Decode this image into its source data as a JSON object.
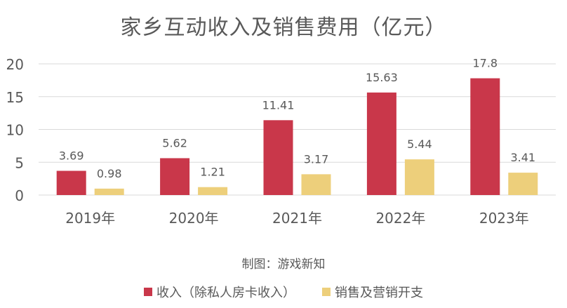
{
  "chart_data": {
    "type": "bar",
    "title": "家乡互动收入及销售费用（亿元）",
    "categories": [
      "2019年",
      "2020年",
      "2021年",
      "2022年",
      "2023年"
    ],
    "series": [
      {
        "name": "收入（除私人房卡收入）",
        "color": "#C9374A",
        "values": [
          3.69,
          5.62,
          11.41,
          15.63,
          17.8
        ],
        "labels": [
          "3.69",
          "5.62",
          "11.41",
          "15.63",
          "17.8"
        ]
      },
      {
        "name": "销售及营销开支",
        "color": "#EDCF7B",
        "values": [
          0.98,
          1.21,
          3.17,
          5.44,
          3.41
        ],
        "labels": [
          "0.98",
          "1.21",
          "3.17",
          "5.44",
          "3.41"
        ]
      }
    ],
    "yticks": [
      0,
      5,
      10,
      15,
      20
    ],
    "ylim": [
      0,
      20
    ],
    "grid": true,
    "legend_position": "bottom"
  },
  "credit": "制图：游戏新知",
  "colors": {
    "gridline": "#D9D9D9",
    "text": "#595959"
  }
}
